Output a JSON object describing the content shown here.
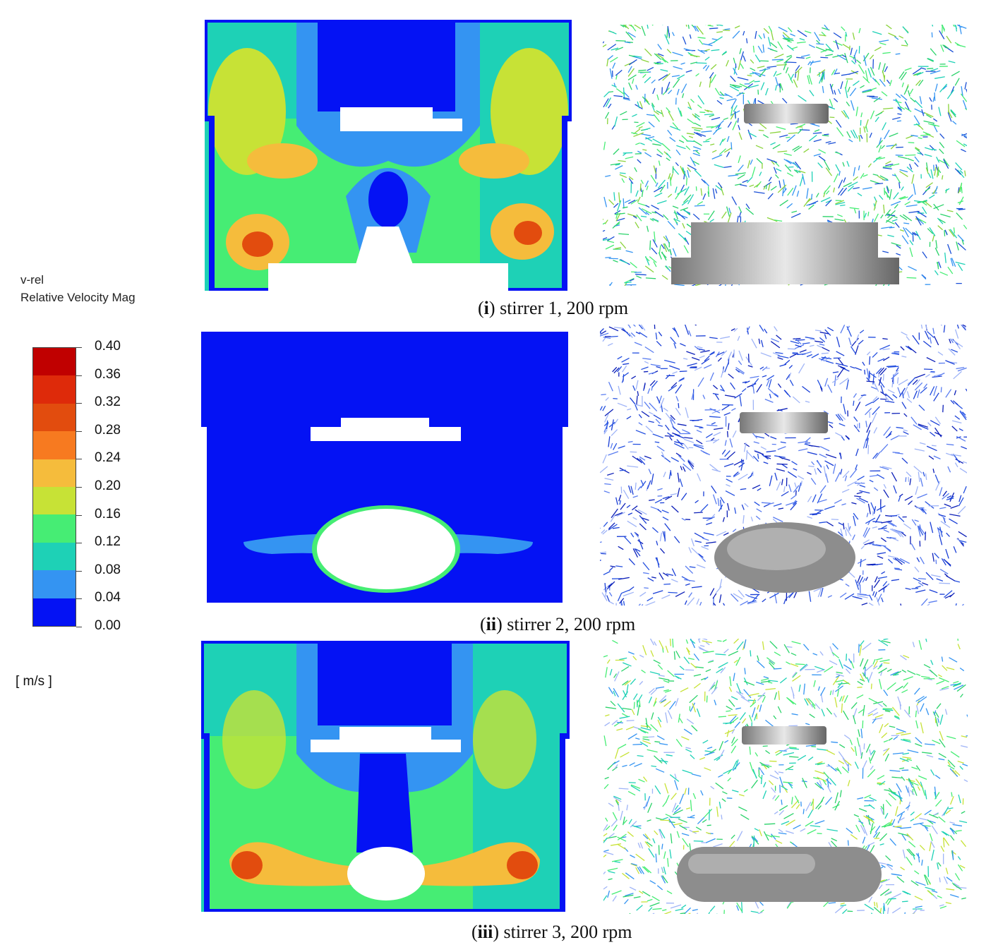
{
  "legend": {
    "variable": "v-rel",
    "description": "Relative Velocity Mag",
    "unit": "[ m/s ]",
    "ticks": [
      "0.40",
      "0.36",
      "0.32",
      "0.28",
      "0.24",
      "0.20",
      "0.16",
      "0.12",
      "0.08",
      "0.04",
      "0.00"
    ],
    "colors": [
      "#c00000",
      "#de2a0a",
      "#e24c0e",
      "#f77a20",
      "#f5bc3c",
      "#c7e236",
      "#46ed74",
      "#1ed1b6",
      "#3494f2",
      "#0412f4"
    ]
  },
  "rows": [
    {
      "numeral": "i",
      "caption_text": " stirrer 1, 200 rpm"
    },
    {
      "numeral": "ii",
      "caption_text": " stirrer 2, 200 rpm"
    },
    {
      "numeral": "iii",
      "caption_text": " stirrer 3, 200 rpm"
    }
  ]
}
